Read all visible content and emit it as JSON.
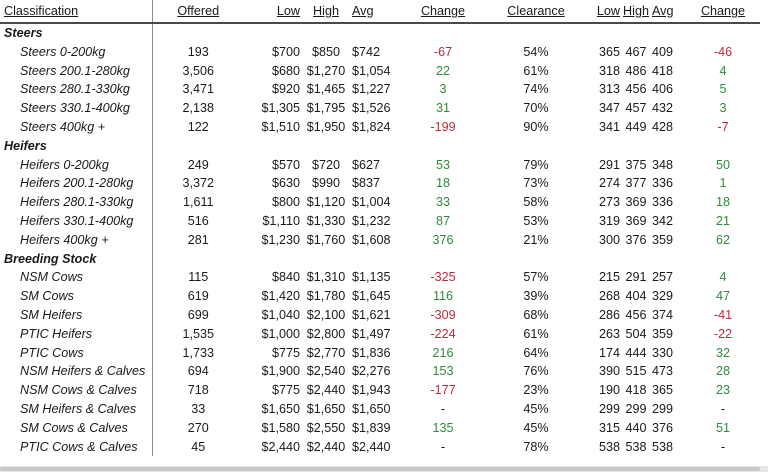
{
  "headers": {
    "classification": "Classification",
    "offered": "Offered",
    "low": "Low",
    "high": "High",
    "avg": "Avg",
    "change": "Change",
    "clearance": "Clearance",
    "low2": "Low",
    "high2": "High",
    "avg2": "Avg",
    "change2": "Change"
  },
  "groups": [
    {
      "name": "Steers",
      "rows": [
        {
          "label": "Steers 0-200kg",
          "offered": "193",
          "low": "$700",
          "high": "$850",
          "avg": "$742",
          "change": "-67",
          "change_dir": "neg",
          "clearance": "54%",
          "low2": "365",
          "high2": "467",
          "avg2": "409",
          "change2": "-46",
          "change2_dir": "neg"
        },
        {
          "label": "Steers 200.1-280kg",
          "offered": "3,506",
          "low": "$680",
          "high": "$1,270",
          "avg": "$1,054",
          "change": "22",
          "change_dir": "pos",
          "clearance": "61%",
          "low2": "318",
          "high2": "486",
          "avg2": "418",
          "change2": "4",
          "change2_dir": "pos"
        },
        {
          "label": "Steers 280.1-330kg",
          "offered": "3,471",
          "low": "$920",
          "high": "$1,465",
          "avg": "$1,227",
          "change": "3",
          "change_dir": "pos",
          "clearance": "74%",
          "low2": "313",
          "high2": "456",
          "avg2": "406",
          "change2": "5",
          "change2_dir": "pos"
        },
        {
          "label": "Steers 330.1-400kg",
          "offered": "2,138",
          "low": "$1,305",
          "high": "$1,795",
          "avg": "$1,526",
          "change": "31",
          "change_dir": "pos",
          "clearance": "70%",
          "low2": "347",
          "high2": "457",
          "avg2": "432",
          "change2": "3",
          "change2_dir": "pos"
        },
        {
          "label": "Steers 400kg +",
          "offered": "122",
          "low": "$1,510",
          "high": "$1,950",
          "avg": "$1,824",
          "change": "-199",
          "change_dir": "neg",
          "clearance": "90%",
          "low2": "341",
          "high2": "449",
          "avg2": "428",
          "change2": "-7",
          "change2_dir": "neg"
        }
      ]
    },
    {
      "name": "Heifers",
      "rows": [
        {
          "label": "Heifers 0-200kg",
          "offered": "249",
          "low": "$570",
          "high": "$720",
          "avg": "$627",
          "change": "53",
          "change_dir": "pos",
          "clearance": "79%",
          "low2": "291",
          "high2": "375",
          "avg2": "348",
          "change2": "50",
          "change2_dir": "pos"
        },
        {
          "label": "Heifers 200.1-280kg",
          "offered": "3,372",
          "low": "$630",
          "high": "$990",
          "avg": "$837",
          "change": "18",
          "change_dir": "pos",
          "clearance": "73%",
          "low2": "274",
          "high2": "377",
          "avg2": "336",
          "change2": "1",
          "change2_dir": "pos"
        },
        {
          "label": "Heifers 280.1-330kg",
          "offered": "1,611",
          "low": "$800",
          "high": "$1,120",
          "avg": "$1,004",
          "change": "33",
          "change_dir": "pos",
          "clearance": "58%",
          "low2": "273",
          "high2": "369",
          "avg2": "336",
          "change2": "18",
          "change2_dir": "pos"
        },
        {
          "label": "Heifers 330.1-400kg",
          "offered": "516",
          "low": "$1,110",
          "high": "$1,330",
          "avg": "$1,232",
          "change": "87",
          "change_dir": "pos",
          "clearance": "53%",
          "low2": "319",
          "high2": "369",
          "avg2": "342",
          "change2": "21",
          "change2_dir": "pos"
        },
        {
          "label": "Heifers 400kg +",
          "offered": "281",
          "low": "$1,230",
          "high": "$1,760",
          "avg": "$1,608",
          "change": "376",
          "change_dir": "pos",
          "clearance": "21%",
          "low2": "300",
          "high2": "376",
          "avg2": "359",
          "change2": "62",
          "change2_dir": "pos"
        }
      ]
    },
    {
      "name": "Breeding Stock",
      "rows": [
        {
          "label": "NSM Cows",
          "offered": "115",
          "low": "$840",
          "high": "$1,310",
          "avg": "$1,135",
          "change": "-325",
          "change_dir": "neg",
          "clearance": "57%",
          "low2": "215",
          "high2": "291",
          "avg2": "257",
          "change2": "4",
          "change2_dir": "pos"
        },
        {
          "label": "SM Cows",
          "offered": "619",
          "low": "$1,420",
          "high": "$1,780",
          "avg": "$1,645",
          "change": "116",
          "change_dir": "pos",
          "clearance": "39%",
          "low2": "268",
          "high2": "404",
          "avg2": "329",
          "change2": "47",
          "change2_dir": "pos"
        },
        {
          "label": "SM Heifers",
          "offered": "699",
          "low": "$1,040",
          "high": "$2,100",
          "avg": "$1,621",
          "change": "-309",
          "change_dir": "neg",
          "clearance": "68%",
          "low2": "286",
          "high2": "456",
          "avg2": "374",
          "change2": "-41",
          "change2_dir": "neg"
        },
        {
          "label": "PTIC Heifers",
          "offered": "1,535",
          "low": "$1,000",
          "high": "$2,800",
          "avg": "$1,497",
          "change": "-224",
          "change_dir": "neg",
          "clearance": "61%",
          "low2": "263",
          "high2": "504",
          "avg2": "359",
          "change2": "-22",
          "change2_dir": "neg"
        },
        {
          "label": "PTIC Cows",
          "offered": "1,733",
          "low": "$775",
          "high": "$2,770",
          "avg": "$1,836",
          "change": "216",
          "change_dir": "pos",
          "clearance": "64%",
          "low2": "174",
          "high2": "444",
          "avg2": "330",
          "change2": "32",
          "change2_dir": "pos"
        },
        {
          "label": "NSM Heifers & Calves",
          "offered": "694",
          "low": "$1,900",
          "high": "$2,540",
          "avg": "$2,276",
          "change": "153",
          "change_dir": "pos",
          "clearance": "76%",
          "low2": "390",
          "high2": "515",
          "avg2": "473",
          "change2": "28",
          "change2_dir": "pos"
        },
        {
          "label": "NSM Cows & Calves",
          "offered": "718",
          "low": "$775",
          "high": "$2,440",
          "avg": "$1,943",
          "change": "-177",
          "change_dir": "neg",
          "clearance": "23%",
          "low2": "190",
          "high2": "418",
          "avg2": "365",
          "change2": "23",
          "change2_dir": "pos"
        },
        {
          "label": "SM Heifers & Calves",
          "offered": "33",
          "low": "$1,650",
          "high": "$1,650",
          "avg": "$1,650",
          "change": "-",
          "change_dir": "neu",
          "clearance": "45%",
          "low2": "299",
          "high2": "299",
          "avg2": "299",
          "change2": "-",
          "change2_dir": "neu"
        },
        {
          "label": "SM Cows & Calves",
          "offered": "270",
          "low": "$1,580",
          "high": "$2,550",
          "avg": "$1,839",
          "change": "135",
          "change_dir": "pos",
          "clearance": "45%",
          "low2": "315",
          "high2": "440",
          "avg2": "376",
          "change2": "51",
          "change2_dir": "pos"
        },
        {
          "label": "PTIC Cows & Calves",
          "offered": "45",
          "low": "$2,440",
          "high": "$2,440",
          "avg": "$2,440",
          "change": "-",
          "change_dir": "neu",
          "clearance": "78%",
          "low2": "538",
          "high2": "538",
          "avg2": "538",
          "change2": "-",
          "change2_dir": "neu"
        }
      ]
    }
  ],
  "colors": {
    "positive": "#2e8b3a",
    "negative": "#c2283c",
    "text": "#1a1a1a",
    "divider": "#8c8c8c"
  }
}
